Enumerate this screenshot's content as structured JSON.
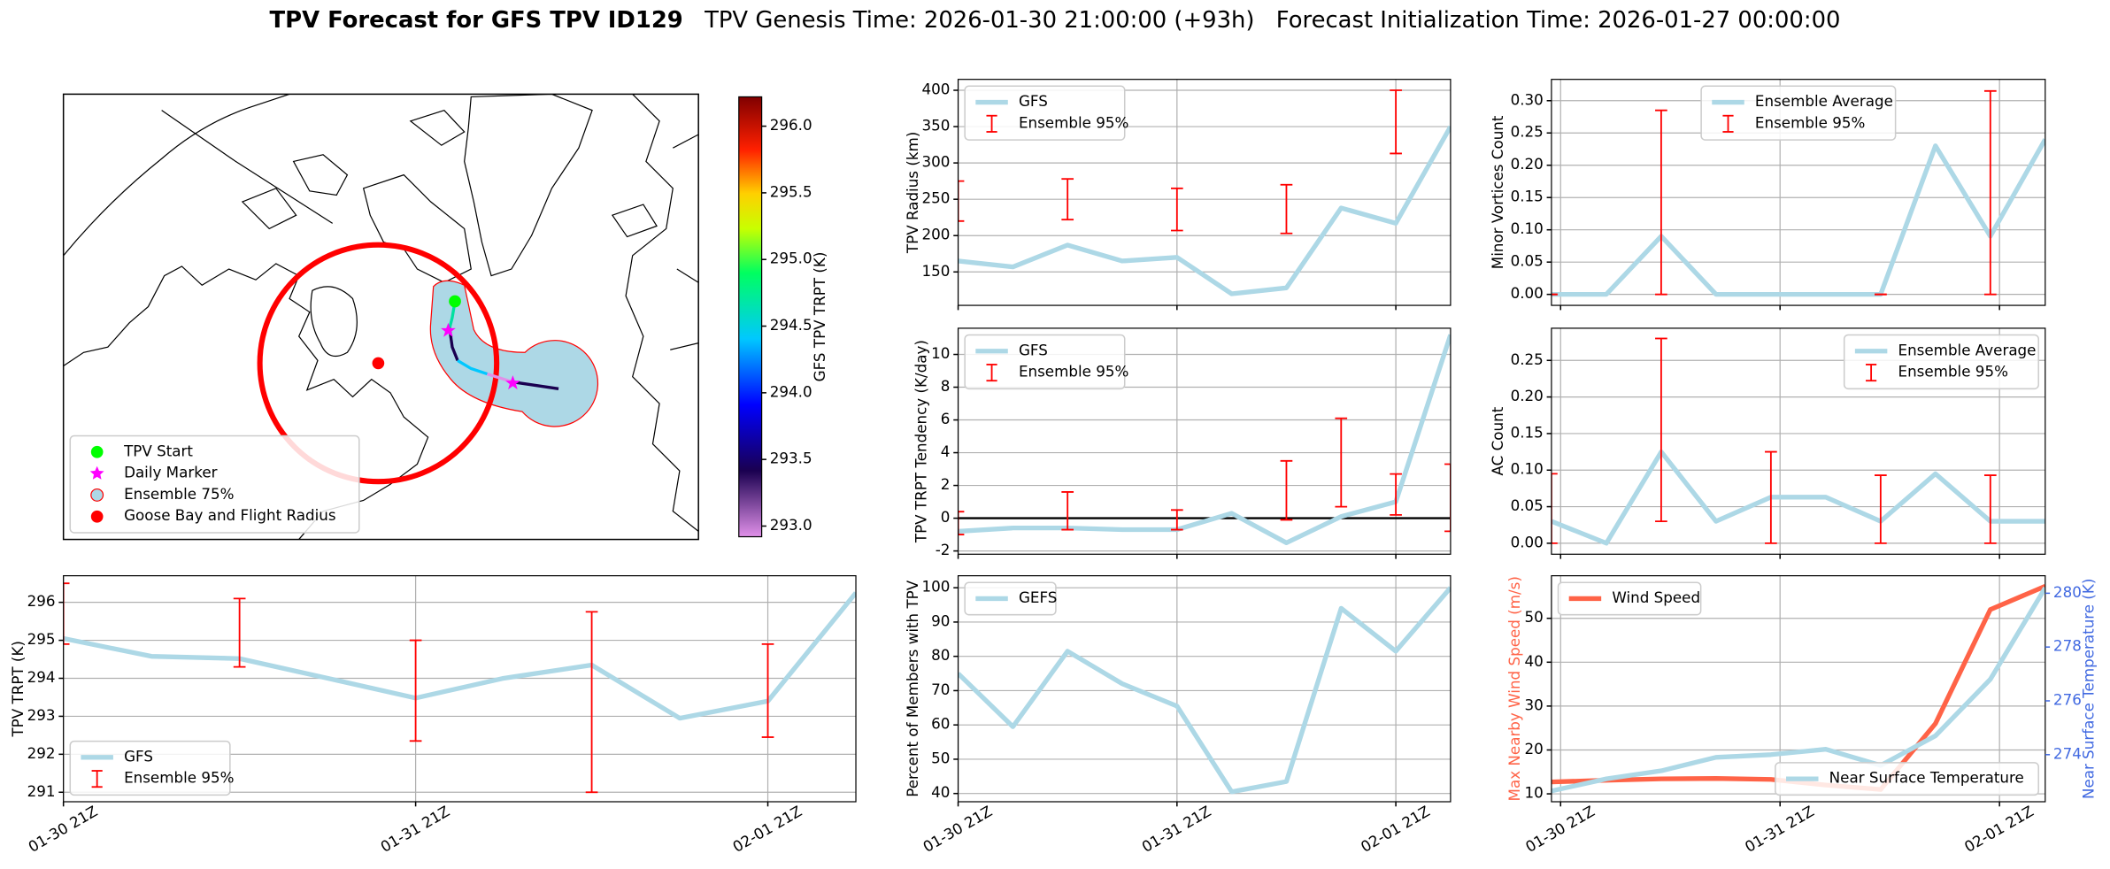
{
  "figure": {
    "title": "TPV Forecast for GFS TPV ID129",
    "genesis": "TPV Genesis Time: 2026-01-30 21:00:00 (+93h)",
    "init": "Forecast Initialization Time: 2026-01-27 00:00:00"
  },
  "chart_data": [
    {
      "type": "map",
      "legend": "lower left",
      "legend_items": [
        {
          "name": "TPV Start",
          "color": "#00ff00",
          "marker": "circle"
        },
        {
          "name": "Daily Marker",
          "color": "#ff00ff",
          "marker": "star"
        },
        {
          "name": "Ensemble 75%",
          "color": "#add8e6",
          "marker": "ring"
        },
        {
          "name": "Goose Bay and Flight Radius",
          "color": "#ff0000",
          "marker": "circle"
        }
      ],
      "colorbar": {
        "label": "GFS TPV TRPT (K)",
        "lim": [
          292.92,
          296.22
        ],
        "ticks": [
          {
            "value": 293,
            "label": "293.0"
          },
          {
            "value": 293.5,
            "label": "293.5"
          },
          {
            "value": 294,
            "label": "294.0"
          },
          {
            "value": 294.5,
            "label": "294.5"
          },
          {
            "value": 295,
            "label": "295.0"
          },
          {
            "value": 295.5,
            "label": "295.5"
          },
          {
            "value": 296,
            "label": "296.0"
          }
        ]
      }
    },
    {
      "type": "line",
      "ylabel": "TPV Radius (km)",
      "xlim": [
        0,
        54
      ],
      "xticks": [
        0,
        24,
        48
      ],
      "ylim": [
        104,
        415
      ],
      "yticks": [
        150,
        200,
        250,
        300,
        350,
        400
      ],
      "grid": true,
      "legend": "upper left",
      "series": [
        {
          "name": "GFS",
          "color": "#add8e6",
          "x": [
            0,
            6,
            12,
            18,
            24,
            30,
            36,
            42,
            48,
            54
          ],
          "values": [
            165,
            157,
            187,
            165,
            170,
            120,
            128,
            238,
            217,
            350
          ]
        },
        {
          "name": "Ensemble 95%",
          "color": "#ff0000",
          "kind": "errorbar",
          "x": [
            0,
            12,
            24,
            36,
            48
          ],
          "low": [
            220,
            222,
            207,
            203,
            313
          ],
          "high": [
            275,
            278,
            265,
            270,
            400
          ]
        }
      ]
    },
    {
      "type": "line",
      "ylabel": "Minor Vortices Count",
      "xlim": [
        -1,
        53
      ],
      "xticks": [
        0,
        24,
        48
      ],
      "ylim": [
        -0.017,
        0.333
      ],
      "yticks": [
        {
          "value": 0,
          "label": "0.00"
        },
        {
          "value": 0.05,
          "label": "0.05"
        },
        {
          "value": 0.1,
          "label": "0.10"
        },
        {
          "value": 0.15,
          "label": "0.15"
        },
        {
          "value": 0.2,
          "label": "0.20"
        },
        {
          "value": 0.25,
          "label": "0.25"
        },
        {
          "value": 0.3,
          "label": "0.30"
        }
      ],
      "grid": true,
      "legend": "upper center",
      "series": [
        {
          "name": "Ensemble Average",
          "color": "#add8e6",
          "x": [
            -1,
            5,
            11,
            17,
            23,
            29,
            35,
            41,
            47,
            53
          ],
          "values": [
            0,
            0,
            0.09,
            0,
            0,
            0,
            0,
            0.23,
            0.09,
            0.24
          ]
        },
        {
          "name": "Ensemble 95%",
          "color": "#ff0000",
          "kind": "errorbar",
          "x": [
            -1,
            11,
            35,
            47
          ],
          "low": [
            0,
            0,
            0,
            0
          ],
          "high": [
            0,
            0.285,
            0,
            0.315
          ]
        }
      ]
    },
    {
      "type": "line",
      "ylabel": "TPV TRPT Tendency (K/day)",
      "xlim": [
        0,
        54
      ],
      "xticks": [
        0,
        24,
        48
      ],
      "ylim": [
        -2.2,
        11.6
      ],
      "yticks": [
        -2,
        0,
        2,
        4,
        6,
        8,
        10
      ],
      "grid": true,
      "legend": "upper left",
      "hline": {
        "value": 0,
        "color": "#000000"
      },
      "series": [
        {
          "name": "GFS",
          "color": "#add8e6",
          "x": [
            0,
            6,
            12,
            18,
            24,
            30,
            36,
            42,
            48,
            54
          ],
          "values": [
            -0.8,
            -0.6,
            -0.6,
            -0.7,
            -0.7,
            0.3,
            -1.5,
            0.1,
            1.0,
            11.2
          ]
        },
        {
          "name": "Ensemble 95%",
          "color": "#ff0000",
          "kind": "errorbar",
          "x": [
            0,
            12,
            24,
            36,
            42,
            48,
            54
          ],
          "low": [
            -1.0,
            -0.7,
            -0.7,
            -0.1,
            0.7,
            0.2,
            -0.8
          ],
          "high": [
            0.4,
            1.6,
            0.5,
            3.5,
            6.1,
            2.7,
            3.3
          ]
        }
      ]
    },
    {
      "type": "line",
      "ylabel": "AC Count",
      "xlim": [
        -1,
        53
      ],
      "xticks": [
        0,
        24,
        48
      ],
      "ylim": [
        -0.015,
        0.294
      ],
      "yticks": [
        {
          "value": 0,
          "label": "0.00"
        },
        {
          "value": 0.05,
          "label": "0.05"
        },
        {
          "value": 0.1,
          "label": "0.10"
        },
        {
          "value": 0.15,
          "label": "0.15"
        },
        {
          "value": 0.2,
          "label": "0.20"
        },
        {
          "value": 0.25,
          "label": "0.25"
        }
      ],
      "grid": true,
      "legend": "upper right",
      "series": [
        {
          "name": "Ensemble Average",
          "color": "#add8e6",
          "x": [
            -1,
            5,
            11,
            17,
            23,
            29,
            35,
            41,
            47,
            53
          ],
          "values": [
            0.03,
            0,
            0.125,
            0.03,
            0.063,
            0.063,
            0.03,
            0.095,
            0.03,
            0.03
          ]
        },
        {
          "name": "Ensemble 95%",
          "color": "#ff0000",
          "kind": "errorbar",
          "x": [
            -1,
            11,
            23,
            35,
            47
          ],
          "low": [
            0,
            0.03,
            0,
            0,
            0
          ],
          "high": [
            0.095,
            0.28,
            0.125,
            0.093,
            0.093
          ]
        }
      ]
    },
    {
      "type": "line",
      "ylabel": "TPV TRPT (K)",
      "xlim": [
        0,
        54
      ],
      "xticks": [
        {
          "value": 0,
          "label": "01-30 21Z"
        },
        {
          "value": 24,
          "label": "01-31 21Z"
        },
        {
          "value": 48,
          "label": "02-01 21Z"
        }
      ],
      "ylim": [
        290.75,
        296.7
      ],
      "yticks": [
        291,
        292,
        293,
        294,
        295,
        296
      ],
      "grid": true,
      "legend": "lower left",
      "series": [
        {
          "name": "GFS",
          "color": "#add8e6",
          "x": [
            0,
            6,
            12,
            18,
            24,
            30,
            36,
            42,
            48,
            54
          ],
          "values": [
            295.05,
            294.58,
            294.52,
            294.0,
            293.48,
            294.0,
            294.35,
            292.95,
            293.4,
            296.25
          ]
        },
        {
          "name": "Ensemble 95%",
          "color": "#ff0000",
          "kind": "errorbar",
          "x": [
            0,
            12,
            24,
            36,
            48
          ],
          "low": [
            294.9,
            294.3,
            292.35,
            291.0,
            292.45
          ],
          "high": [
            296.5,
            296.1,
            295.0,
            295.75,
            294.9
          ]
        }
      ]
    },
    {
      "type": "line",
      "ylabel": "Percent of Members with TPV",
      "xlim": [
        0,
        54
      ],
      "xticks": [
        {
          "value": 0,
          "label": "01-30 21Z"
        },
        {
          "value": 24,
          "label": "01-31 21Z"
        },
        {
          "value": 48,
          "label": "02-01 21Z"
        }
      ],
      "ylim": [
        37.6,
        103.5
      ],
      "yticks": [
        40,
        50,
        60,
        70,
        80,
        90,
        100
      ],
      "grid": true,
      "legend": "upper left",
      "series": [
        {
          "name": "GEFS",
          "color": "#add8e6",
          "x": [
            0,
            6,
            12,
            18,
            24,
            30,
            36,
            42,
            48,
            54
          ],
          "values": [
            75,
            59.5,
            81.5,
            72,
            65.5,
            40.5,
            43.5,
            94,
            81.5,
            100
          ]
        }
      ]
    },
    {
      "type": "line",
      "ylabel": "Max Nearby Wind Speed (m/s)",
      "ylabel_color": "#ff6347",
      "y2label": "Near Surface Temperature (K)",
      "y2label_color": "#4169e1",
      "xlim": [
        -1,
        53
      ],
      "xticks": [
        {
          "value": 0,
          "label": "01-30 21Z"
        },
        {
          "value": 24,
          "label": "01-31 21Z"
        },
        {
          "value": 48,
          "label": "02-01 21Z"
        }
      ],
      "ylim": [
        8.2,
        59.7
      ],
      "yticks": [
        10,
        20,
        30,
        40,
        50
      ],
      "y2lim": [
        272.25,
        280.65
      ],
      "y2ticks": [
        274,
        276,
        278,
        280
      ],
      "grid": true,
      "legend": "upper left",
      "legend2": "lower right",
      "series": [
        {
          "name": "Wind Speed",
          "color": "#ff6347",
          "x": [
            -1,
            5,
            11,
            17,
            23,
            29,
            35,
            41,
            47,
            53
          ],
          "values": [
            12.7,
            13.1,
            13.4,
            13.5,
            13.3,
            12.0,
            11.0,
            26,
            52,
            57.3
          ]
        },
        {
          "name": "Near Surface Temperature",
          "color": "#add8e6",
          "axis": "y2",
          "x": [
            -1,
            5,
            11,
            17,
            23,
            29,
            35,
            41,
            47,
            53
          ],
          "values": [
            272.65,
            273.1,
            273.4,
            273.9,
            274.0,
            274.2,
            273.6,
            274.7,
            276.8,
            280.2
          ]
        }
      ]
    }
  ]
}
